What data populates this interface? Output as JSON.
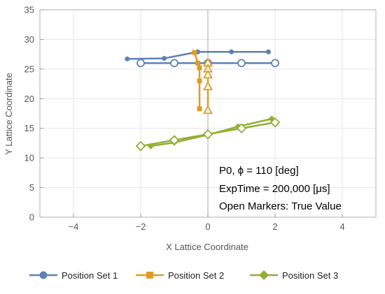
{
  "chart_data": {
    "type": "scatter",
    "xlabel": "X Lattice Coordinate",
    "ylabel": "Y Lattice Coordinate",
    "xlim": [
      -5,
      5
    ],
    "ylim": [
      0,
      35
    ],
    "xticks": [
      -4,
      -2,
      0,
      2,
      4
    ],
    "yticks": [
      0,
      5,
      10,
      15,
      20,
      25,
      30,
      35
    ],
    "grid": true,
    "legend_position": "bottom",
    "annotations": [
      "P0, ϕ = 110 [deg]",
      "ExpTime = 200,000 [μs]",
      "Open Markers: True Value"
    ],
    "series": [
      {
        "name": "Position Set 1",
        "color": "#5E81B5",
        "marker": "circle",
        "measured": {
          "x": [
            -2.4,
            -1.3,
            -0.3,
            0.7,
            1.8
          ],
          "y": [
            26.7,
            26.8,
            27.9,
            27.9,
            27.9
          ]
        },
        "true": {
          "x": [
            -2.0,
            -1.0,
            0.0,
            1.0,
            2.0
          ],
          "y": [
            26.0,
            26.0,
            26.0,
            26.0,
            26.0
          ]
        }
      },
      {
        "name": "Position Set 2",
        "color": "#E19C24",
        "marker": "square",
        "measured": {
          "x": [
            -0.4,
            -0.3,
            -0.25,
            -0.25,
            -0.25
          ],
          "y": [
            27.8,
            26.0,
            25.2,
            23.0,
            18.3
          ]
        },
        "true": {
          "x": [
            0.0,
            0.0,
            0.0,
            0.0,
            0.0
          ],
          "y": [
            26.0,
            25.0,
            24.0,
            22.0,
            18.0
          ]
        }
      },
      {
        "name": "Position Set 3",
        "color": "#8FB032",
        "marker": "diamond",
        "measured": {
          "x": [
            -1.7,
            -1.0,
            0.0,
            0.9,
            1.9
          ],
          "y": [
            12.0,
            12.6,
            13.9,
            15.3,
            16.6
          ]
        },
        "true": {
          "x": [
            -2.0,
            -1.0,
            0.0,
            1.0,
            2.0
          ],
          "y": [
            12.0,
            13.0,
            14.0,
            15.0,
            16.0
          ]
        }
      }
    ]
  }
}
